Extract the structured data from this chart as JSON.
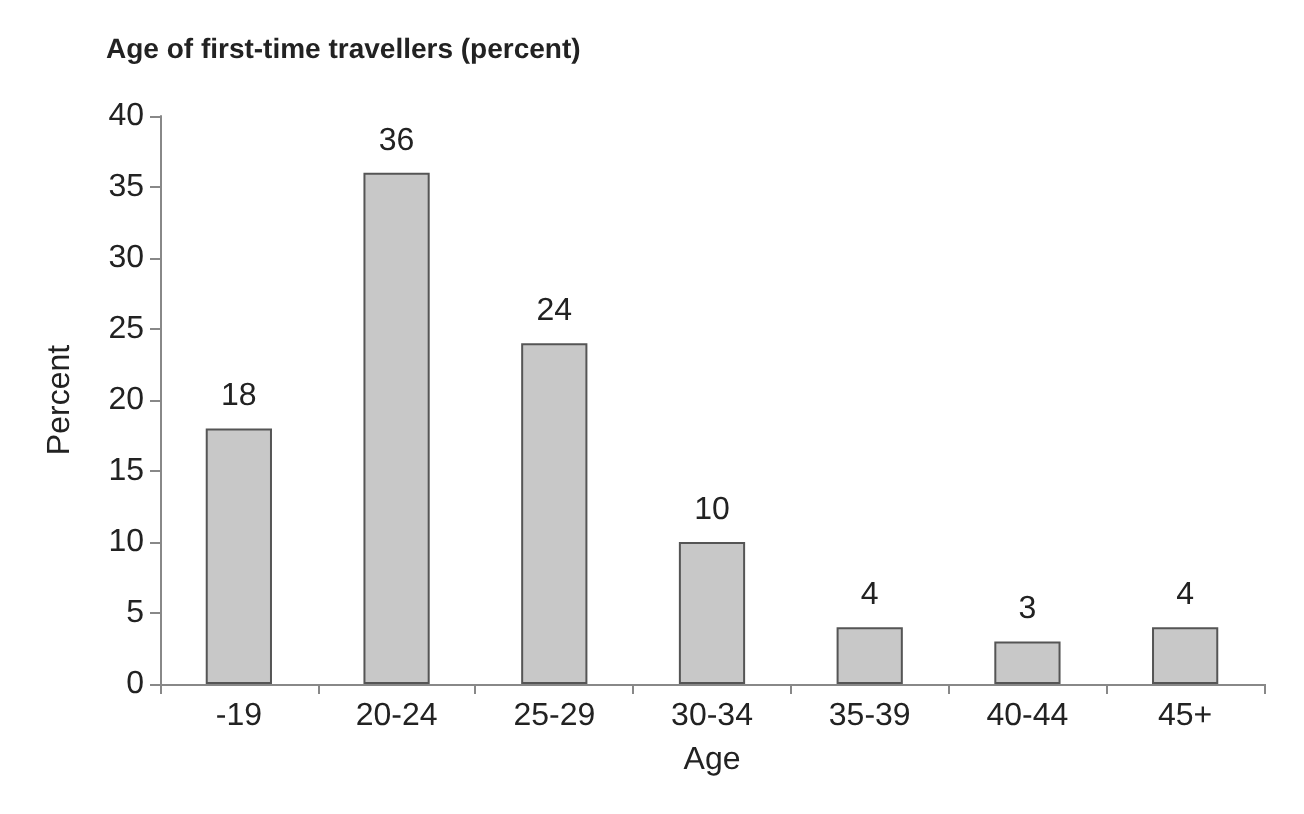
{
  "chart_data": {
    "type": "bar",
    "title": "Age of first-time travellers (percent)",
    "xlabel": "Age",
    "ylabel": "Percent",
    "categories": [
      "-19",
      "20-24",
      "25-29",
      "30-34",
      "35-39",
      "40-44",
      "45+"
    ],
    "values": [
      18,
      36,
      24,
      10,
      4,
      3,
      4
    ],
    "color": "#c8c8c8",
    "ylim": [
      0,
      40
    ],
    "yticks": [
      0,
      5,
      10,
      15,
      20,
      25,
      30,
      35,
      40
    ],
    "grid": false,
    "data_labels": true
  }
}
